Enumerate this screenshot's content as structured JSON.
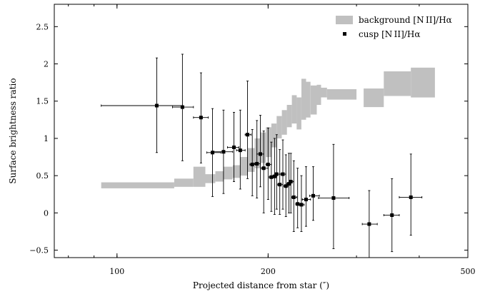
{
  "chart_data": {
    "type": "scatter",
    "xlabel": "Projected distance from star (″)",
    "ylabel": "Surface brightness ratio",
    "xscale": "log",
    "xlim": [
      75,
      500
    ],
    "ylim": [
      -0.6,
      2.8
    ],
    "xticks": [
      100,
      200,
      500
    ],
    "xtick_labels": [
      "100",
      "200",
      "500"
    ],
    "yticks": [
      -0.5,
      0,
      0.5,
      1,
      1.5,
      2,
      2.5
    ],
    "ytick_labels": [
      "−0.5",
      "0",
      "0.5",
      "1",
      "1.5",
      "2",
      "2.5"
    ],
    "grid": false,
    "legend_position": "top-right",
    "legend": {
      "background": "background [N II]/Hα",
      "cusp": "cusp [N II]/Hα"
    },
    "colors": {
      "band": "#c0c0c0",
      "points": "#000000"
    },
    "series": [
      {
        "name": "background [N II]/Hα",
        "kind": "band",
        "segments": [
          {
            "x0": 93,
            "x1": 130,
            "ylo": 0.33,
            "yhi": 0.41
          },
          {
            "x0": 130,
            "x1": 142,
            "ylo": 0.35,
            "yhi": 0.46
          },
          {
            "x0": 142,
            "x1": 150,
            "ylo": 0.35,
            "yhi": 0.62
          },
          {
            "x0": 150,
            "x1": 157,
            "ylo": 0.4,
            "yhi": 0.52
          },
          {
            "x0": 157,
            "x1": 163,
            "ylo": 0.42,
            "yhi": 0.56
          },
          {
            "x0": 163,
            "x1": 170,
            "ylo": 0.45,
            "yhi": 0.62
          },
          {
            "x0": 170,
            "x1": 176,
            "ylo": 0.47,
            "yhi": 0.64
          },
          {
            "x0": 176,
            "x1": 182,
            "ylo": 0.5,
            "yhi": 0.75
          },
          {
            "x0": 182,
            "x1": 188,
            "ylo": 0.55,
            "yhi": 0.87
          },
          {
            "x0": 188,
            "x1": 193,
            "ylo": 0.6,
            "yhi": 1.0
          },
          {
            "x0": 193,
            "x1": 198,
            "ylo": 0.67,
            "yhi": 1.08
          },
          {
            "x0": 198,
            "x1": 203,
            "ylo": 0.75,
            "yhi": 1.15
          },
          {
            "x0": 203,
            "x1": 208,
            "ylo": 0.88,
            "yhi": 1.2
          },
          {
            "x0": 208,
            "x1": 213,
            "ylo": 1.0,
            "yhi": 1.3
          },
          {
            "x0": 213,
            "x1": 218,
            "ylo": 1.05,
            "yhi": 1.38
          },
          {
            "x0": 218,
            "x1": 223,
            "ylo": 1.15,
            "yhi": 1.45
          },
          {
            "x0": 223,
            "x1": 228,
            "ylo": 1.2,
            "yhi": 1.58
          },
          {
            "x0": 228,
            "x1": 233,
            "ylo": 1.12,
            "yhi": 1.55
          },
          {
            "x0": 233,
            "x1": 238,
            "ylo": 1.25,
            "yhi": 1.8
          },
          {
            "x0": 238,
            "x1": 243,
            "ylo": 1.28,
            "yhi": 1.76
          },
          {
            "x0": 243,
            "x1": 250,
            "ylo": 1.32,
            "yhi": 1.71
          },
          {
            "x0": 250,
            "x1": 255,
            "ylo": 1.45,
            "yhi": 1.72
          },
          {
            "x0": 255,
            "x1": 262,
            "ylo": 1.55,
            "yhi": 1.68
          },
          {
            "x0": 262,
            "x1": 300,
            "ylo": 1.52,
            "yhi": 1.66
          },
          {
            "x0": 310,
            "x1": 340,
            "ylo": 1.42,
            "yhi": 1.67
          },
          {
            "x0": 340,
            "x1": 385,
            "ylo": 1.57,
            "yhi": 1.9
          },
          {
            "x0": 385,
            "x1": 430,
            "ylo": 1.55,
            "yhi": 1.95
          }
        ]
      },
      {
        "name": "cusp [N II]/Hα",
        "kind": "errorbars",
        "points": [
          {
            "x": 120,
            "y": 1.44,
            "xlo": 93,
            "xhi": 135,
            "ylo": 0.81,
            "yhi": 2.08
          },
          {
            "x": 135,
            "y": 1.42,
            "xlo": 129,
            "xhi": 142,
            "ylo": 0.7,
            "yhi": 2.13
          },
          {
            "x": 147,
            "y": 1.28,
            "xlo": 142,
            "xhi": 152,
            "ylo": 0.67,
            "yhi": 1.88
          },
          {
            "x": 155,
            "y": 0.81,
            "xlo": 151,
            "xhi": 161,
            "ylo": 0.22,
            "yhi": 1.4
          },
          {
            "x": 163,
            "y": 0.82,
            "xlo": 156,
            "xhi": 170,
            "ylo": 0.26,
            "yhi": 1.38
          },
          {
            "x": 171,
            "y": 0.88,
            "xlo": 166,
            "xhi": 175,
            "ylo": 0.42,
            "yhi": 1.35
          },
          {
            "x": 176,
            "y": 0.84,
            "xlo": 173,
            "xhi": 180,
            "ylo": 0.32,
            "yhi": 1.38
          },
          {
            "x": 182,
            "y": 1.05,
            "xlo": 180,
            "xhi": 185,
            "ylo": 0.46,
            "yhi": 1.77
          },
          {
            "x": 186,
            "y": 0.65,
            "xlo": 184,
            "xhi": 189,
            "ylo": 0.23,
            "yhi": 1.12
          },
          {
            "x": 190,
            "y": 0.66,
            "xlo": 188,
            "xhi": 193,
            "ylo": 0.2,
            "yhi": 1.24
          },
          {
            "x": 193,
            "y": 0.79,
            "xlo": 190,
            "xhi": 196,
            "ylo": 0.35,
            "yhi": 1.31
          },
          {
            "x": 196,
            "y": 0.6,
            "xlo": 194,
            "xhi": 200,
            "ylo": 0.0,
            "yhi": 1.1
          },
          {
            "x": 200,
            "y": 0.65,
            "xlo": 198,
            "xhi": 203,
            "ylo": 0.18,
            "yhi": 1.14
          },
          {
            "x": 203,
            "y": 0.48,
            "xlo": 201,
            "xhi": 206,
            "ylo": 0.02,
            "yhi": 0.95
          },
          {
            "x": 206,
            "y": 0.49,
            "xlo": 204,
            "xhi": 208,
            "ylo": -0.02,
            "yhi": 1.0
          },
          {
            "x": 208,
            "y": 0.52,
            "xlo": 206,
            "xhi": 211,
            "ylo": 0.05,
            "yhi": 1.05
          },
          {
            "x": 211,
            "y": 0.38,
            "xlo": 209,
            "xhi": 214,
            "ylo": -0.02,
            "yhi": 0.85
          },
          {
            "x": 214,
            "y": 0.52,
            "xlo": 212,
            "xhi": 217,
            "ylo": 0.05,
            "yhi": 0.98
          },
          {
            "x": 217,
            "y": 0.36,
            "xlo": 215,
            "xhi": 219,
            "ylo": -0.05,
            "yhi": 0.78
          },
          {
            "x": 220,
            "y": 0.39,
            "xlo": 218,
            "xhi": 222,
            "ylo": 0.0,
            "yhi": 0.8
          },
          {
            "x": 222,
            "y": 0.42,
            "xlo": 220,
            "xhi": 225,
            "ylo": 0.0,
            "yhi": 0.8
          },
          {
            "x": 225,
            "y": 0.21,
            "xlo": 223,
            "xhi": 228,
            "ylo": -0.25,
            "yhi": 0.7
          },
          {
            "x": 229,
            "y": 0.12,
            "xlo": 227,
            "xhi": 232,
            "ylo": -0.2,
            "yhi": 0.6
          },
          {
            "x": 233,
            "y": 0.11,
            "xlo": 231,
            "xhi": 236,
            "ylo": -0.25,
            "yhi": 0.5
          },
          {
            "x": 238,
            "y": 0.18,
            "xlo": 234,
            "xhi": 243,
            "ylo": -0.18,
            "yhi": 0.62
          },
          {
            "x": 246,
            "y": 0.23,
            "xlo": 242,
            "xhi": 253,
            "ylo": -0.1,
            "yhi": 0.62
          },
          {
            "x": 270,
            "y": 0.2,
            "xlo": 252,
            "xhi": 290,
            "ylo": -0.48,
            "yhi": 0.92
          },
          {
            "x": 318,
            "y": -0.15,
            "xlo": 308,
            "xhi": 330,
            "ylo": -0.62,
            "yhi": 0.3
          },
          {
            "x": 353,
            "y": -0.03,
            "xlo": 340,
            "xhi": 365,
            "ylo": -0.52,
            "yhi": 0.46
          },
          {
            "x": 385,
            "y": 0.21,
            "xlo": 365,
            "xhi": 405,
            "ylo": -0.3,
            "yhi": 0.79
          }
        ]
      }
    ]
  }
}
